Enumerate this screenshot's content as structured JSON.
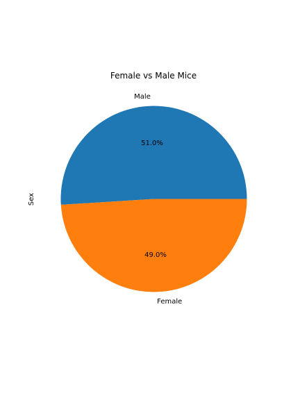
{
  "chart_data": {
    "type": "pie",
    "title": "Female vs Male Mice",
    "ylabel": "Sex",
    "categories": [
      "Male",
      "Female"
    ],
    "values": [
      51.0,
      49.0
    ],
    "value_labels": [
      "51.0%",
      "49.0%"
    ],
    "colors": [
      "#1f77b4",
      "#ff7f0e"
    ],
    "start_angle_deg": 0,
    "direction": "counterclockwise",
    "legend": "none"
  }
}
